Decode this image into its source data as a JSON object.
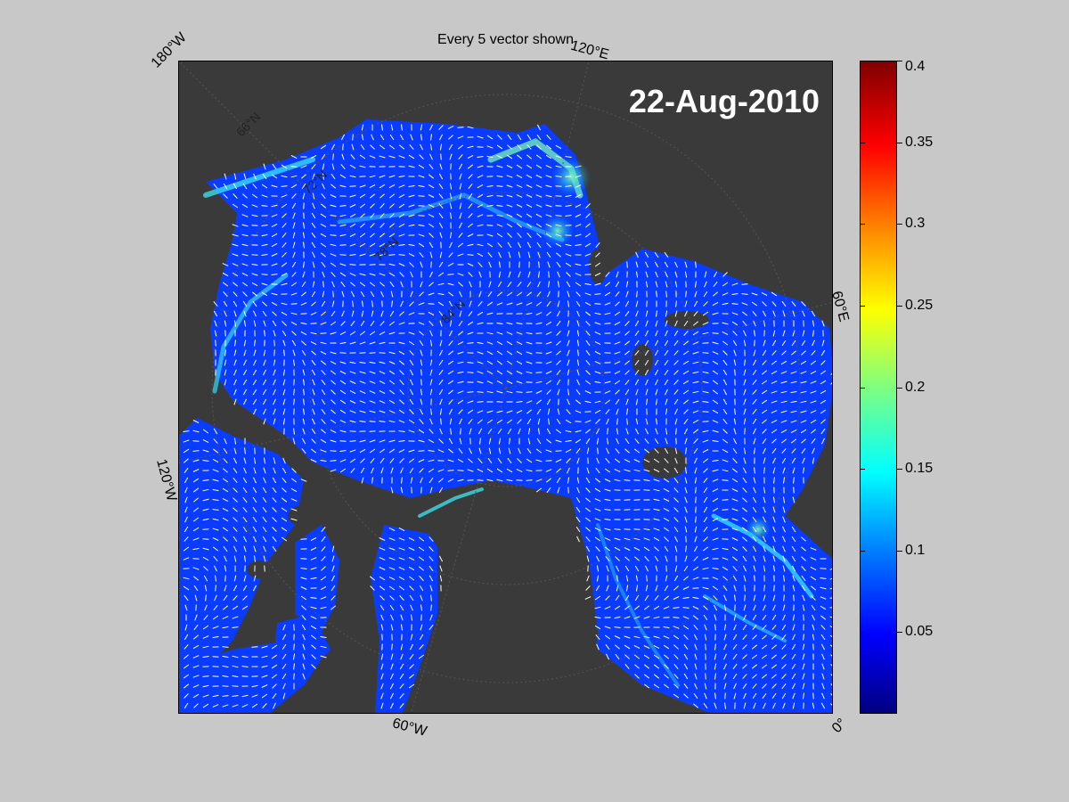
{
  "title": "Every 5 vector shown",
  "date": "22-Aug-2010",
  "longitude_labels": {
    "top_left": "180°W",
    "top_right": "120°E",
    "right": "60°E",
    "left": "120°W",
    "bottom": "60°W",
    "bottom_right": "0°"
  },
  "latitude_labels": [
    "66°N",
    "72°N",
    "78°N",
    "84°N"
  ],
  "colorbar": {
    "colormap": "jet",
    "range": [
      0,
      0.4
    ],
    "ticks": [
      "0.4",
      "0.35",
      "0.3",
      "0.25",
      "0.2",
      "0.15",
      "0.1",
      "0.05"
    ],
    "tick_values": [
      0.4,
      0.35,
      0.3,
      0.25,
      0.2,
      0.15,
      0.1,
      0.05
    ]
  },
  "colors": {
    "background": "#c8c8c8",
    "land": "#3a3a3a",
    "vectors": "#ffffff",
    "ocean_low": "#0a3cff"
  }
}
